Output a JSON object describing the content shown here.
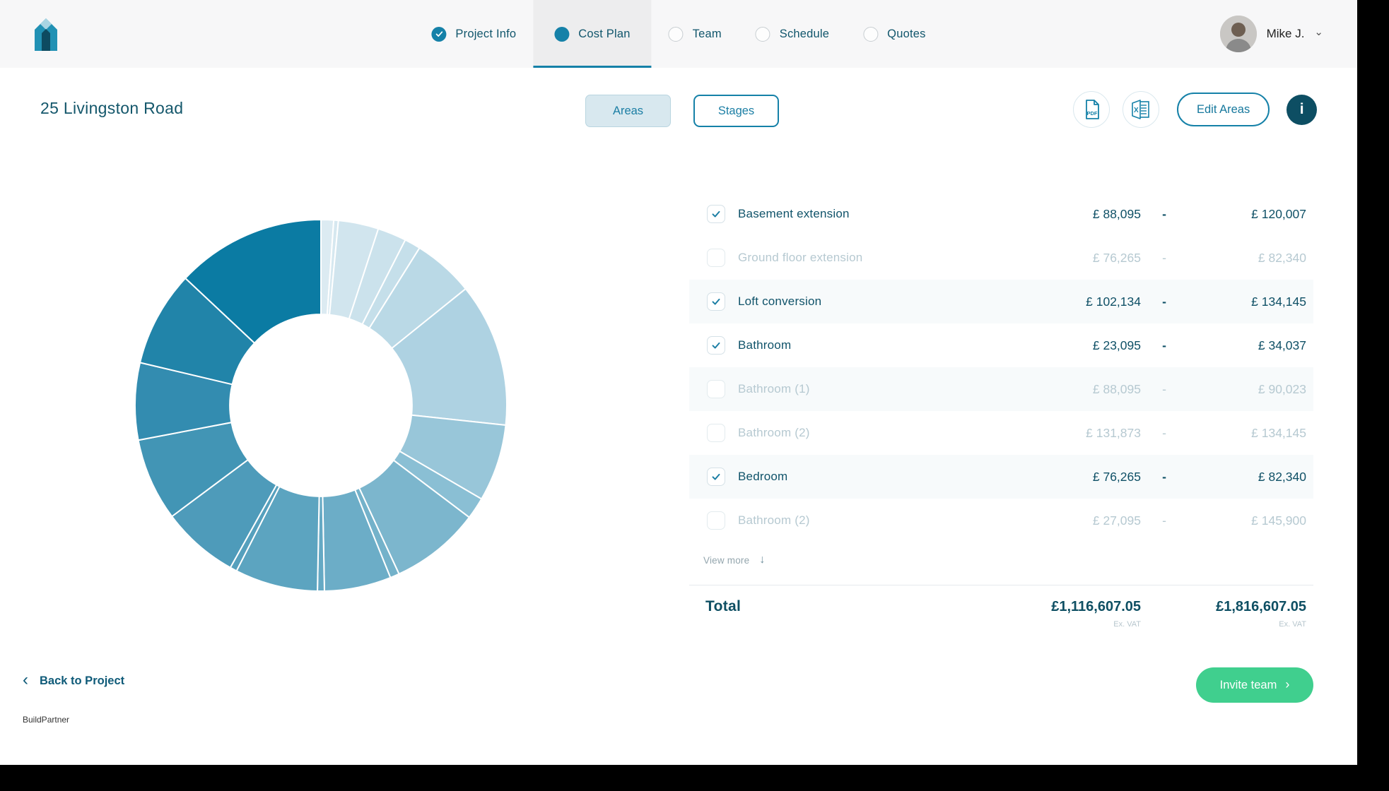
{
  "header": {
    "tabs": [
      {
        "label": "Project Info",
        "state": "complete"
      },
      {
        "label": "Cost Plan",
        "state": "active"
      },
      {
        "label": "Team",
        "state": "todo"
      },
      {
        "label": "Schedule",
        "state": "todo"
      },
      {
        "label": "Quotes",
        "state": "todo"
      }
    ],
    "user": {
      "name": "Mike J.",
      "menu_chevron": "⌄"
    }
  },
  "page": {
    "title": "25 Livingston Road",
    "view_toggle": {
      "options": [
        "Areas",
        "Stages"
      ],
      "selected": "Areas"
    },
    "actions": {
      "edit_areas_label": "Edit Areas",
      "info_glyph": "i",
      "pdf_icon_label": "PDF"
    }
  },
  "table": {
    "dash": "-",
    "rows": [
      {
        "label": "Basement extension",
        "checked": true,
        "low": "£ 88,095",
        "high": "£ 120,007"
      },
      {
        "label": "Ground floor extension",
        "checked": false,
        "low": "£ 76,265",
        "high": "£ 82,340"
      },
      {
        "label": "Loft conversion",
        "checked": true,
        "low": "£ 102,134",
        "high": "£ 134,145"
      },
      {
        "label": "Bathroom",
        "checked": true,
        "low": "£ 23,095",
        "high": "£ 34,037"
      },
      {
        "label": "Bathroom (1)",
        "checked": false,
        "low": "£ 88,095",
        "high": "£ 90,023"
      },
      {
        "label": "Bathroom (2)",
        "checked": false,
        "low": "£ 131,873",
        "high": "£ 134,145"
      },
      {
        "label": "Bedroom",
        "checked": true,
        "low": "£ 76,265",
        "high": "£ 82,340"
      },
      {
        "label": "Bathroom (2)",
        "checked": false,
        "low": "£ 27,095",
        "high": "£ 145,900"
      }
    ],
    "view_more_label": "View more",
    "view_more_arrow": "↓",
    "total": {
      "label": "Total",
      "low": "£1,116,607.05",
      "high": "£1,816,607.05",
      "note": "Ex. VAT"
    }
  },
  "footer": {
    "back_label": "Back to Project",
    "back_chevron": "‹",
    "invite_label": "Invite team",
    "invite_chevron": "›",
    "brand_label": "BuildPartner"
  },
  "chart_data": {
    "type": "pie",
    "subtype": "donut",
    "title": "",
    "legend": "none",
    "labels_visible": false,
    "inner_radius_ratio": 0.49,
    "start_angle_deg": 0,
    "direction": "clockwise",
    "segments": [
      {
        "pct": 1.1,
        "color": "#dcebf2"
      },
      {
        "pct": 0.4,
        "color": "#d6e8f0"
      },
      {
        "pct": 3.5,
        "color": "#d1e5ee"
      },
      {
        "pct": 2.5,
        "color": "#cbe2ec"
      },
      {
        "pct": 1.4,
        "color": "#c5dfea"
      },
      {
        "pct": 5.3,
        "color": "#bad9e6"
      },
      {
        "pct": 12.5,
        "color": "#aed2e2"
      },
      {
        "pct": 6.7,
        "color": "#98c6d9"
      },
      {
        "pct": 1.9,
        "color": "#8abfd4"
      },
      {
        "pct": 7.8,
        "color": "#7cb6cd"
      },
      {
        "pct": 0.8,
        "color": "#74b2ca"
      },
      {
        "pct": 5.8,
        "color": "#6cadc7"
      },
      {
        "pct": 0.6,
        "color": "#65a9c4"
      },
      {
        "pct": 7.2,
        "color": "#5ca4c0"
      },
      {
        "pct": 0.6,
        "color": "#56a0bd"
      },
      {
        "pct": 6.7,
        "color": "#4e9bba"
      },
      {
        "pct": 7.2,
        "color": "#4295b5"
      },
      {
        "pct": 6.7,
        "color": "#338cb0"
      },
      {
        "pct": 8.3,
        "color": "#2184a9"
      },
      {
        "pct": 13.0,
        "color": "#0b7ba3"
      }
    ]
  },
  "colors": {
    "accent_teal": "#1581a8",
    "dark_teal_text": "#0f5066",
    "disabled_text": "#b6c9d1",
    "active_tab_bg": "#ededee",
    "header_bg": "#f7f7f8",
    "selected_toggle_bg": "#d8e8ef",
    "invite_green": "#40cf8e",
    "info_circle_bg": "#0d4e63"
  }
}
